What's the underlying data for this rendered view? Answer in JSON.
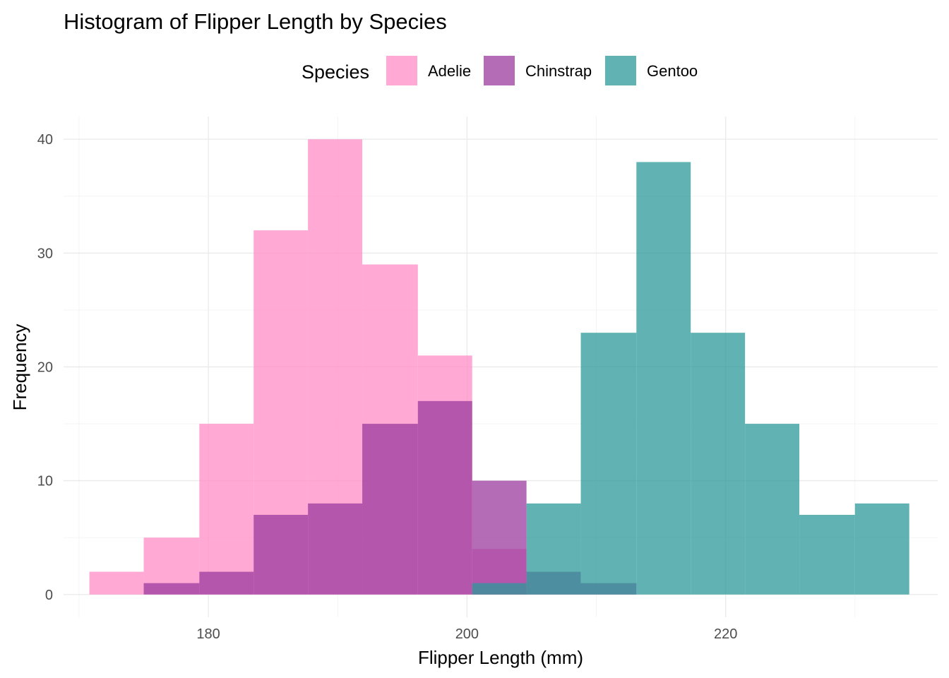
{
  "chart_data": {
    "type": "bar",
    "subtype": "histogram-overlapping",
    "title": "Histogram of Flipper Length by Species",
    "xlabel": "Flipper Length (mm)",
    "ylabel": "Frequency",
    "xlim": [
      168.8,
      236.4
    ],
    "ylim": [
      -2,
      42
    ],
    "x_ticks": [
      180,
      200,
      220
    ],
    "y_ticks": [
      0,
      10,
      20,
      30,
      40
    ],
    "grid": true,
    "legend": {
      "title": "Species",
      "position": "top"
    },
    "series": [
      {
        "name": "Adelie",
        "color": "#ff8cc6",
        "bins": [
          {
            "x0": 170.8,
            "x1": 175.0,
            "count": 2
          },
          {
            "x0": 175.0,
            "x1": 179.3,
            "count": 5
          },
          {
            "x0": 179.3,
            "x1": 183.5,
            "count": 15
          },
          {
            "x0": 183.5,
            "x1": 187.7,
            "count": 32
          },
          {
            "x0": 187.7,
            "x1": 191.9,
            "count": 40
          },
          {
            "x0": 191.9,
            "x1": 196.2,
            "count": 29
          },
          {
            "x0": 196.2,
            "x1": 200.4,
            "count": 21
          },
          {
            "x0": 200.4,
            "x1": 204.6,
            "count": 4
          }
        ]
      },
      {
        "name": "Chinstrap",
        "color": "#9b3b9f",
        "bins": [
          {
            "x0": 175.0,
            "x1": 179.3,
            "count": 1
          },
          {
            "x0": 179.3,
            "x1": 183.5,
            "count": 2
          },
          {
            "x0": 183.5,
            "x1": 187.7,
            "count": 7
          },
          {
            "x0": 187.7,
            "x1": 191.9,
            "count": 8
          },
          {
            "x0": 191.9,
            "x1": 196.2,
            "count": 15
          },
          {
            "x0": 196.2,
            "x1": 200.4,
            "count": 17
          },
          {
            "x0": 200.4,
            "x1": 204.6,
            "count": 10
          },
          {
            "x0": 204.6,
            "x1": 208.8,
            "count": 2
          },
          {
            "x0": 208.8,
            "x1": 213.1,
            "count": 1
          }
        ]
      },
      {
        "name": "Gentoo",
        "color": "#2c9a9a",
        "bins": [
          {
            "x0": 200.4,
            "x1": 204.6,
            "count": 1
          },
          {
            "x0": 204.6,
            "x1": 208.8,
            "count": 8
          },
          {
            "x0": 208.8,
            "x1": 213.1,
            "count": 23
          },
          {
            "x0": 213.1,
            "x1": 217.3,
            "count": 38
          },
          {
            "x0": 217.3,
            "x1": 221.5,
            "count": 23
          },
          {
            "x0": 221.5,
            "x1": 225.7,
            "count": 15
          },
          {
            "x0": 225.7,
            "x1": 230.0,
            "count": 7
          },
          {
            "x0": 230.0,
            "x1": 234.2,
            "count": 8
          }
        ]
      }
    ]
  }
}
